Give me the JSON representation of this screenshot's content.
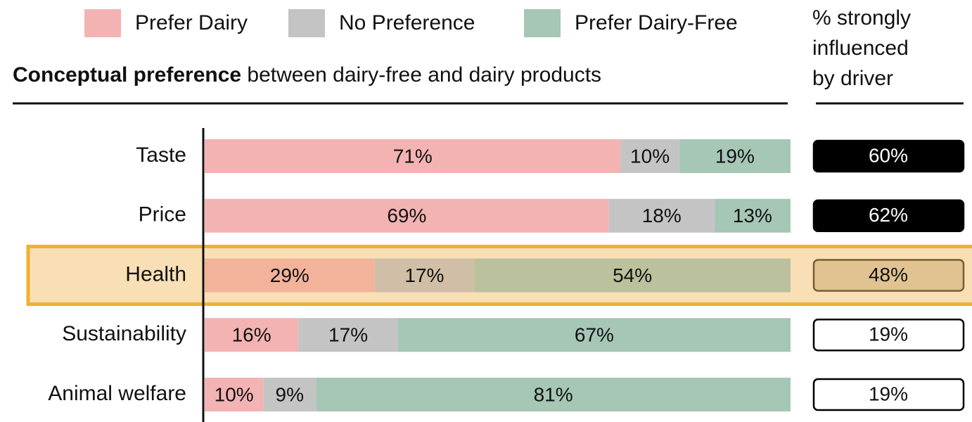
{
  "chart_data": {
    "type": "stacked-bar-horizontal",
    "title": "Conceptual preference",
    "title_suffix": " between dairy-free and dairy products",
    "categories": [
      "Taste",
      "Price",
      "Health",
      "Sustainability",
      "Animal welfare"
    ],
    "xlim": [
      0,
      100
    ],
    "highlight": "Health",
    "series": [
      {
        "name": "Prefer Dairy",
        "color": "#f4b3b3",
        "values": [
          71,
          69,
          29,
          16,
          10
        ],
        "value_labels": [
          "71%",
          "69%",
          "29%",
          "16%",
          "10%"
        ]
      },
      {
        "name": "No Preference",
        "color": "#c4c4c4",
        "values": [
          10,
          18,
          17,
          17,
          9
        ],
        "value_labels": [
          "10%",
          "18%",
          "17%",
          "17%",
          "9%"
        ]
      },
      {
        "name": "Prefer Dairy-Free",
        "color": "#a6c6b6",
        "values": [
          19,
          13,
          54,
          67,
          81
        ],
        "value_labels": [
          "19%",
          "13%",
          "54%",
          "67%",
          "81%"
        ]
      }
    ],
    "influence": {
      "name": "% strongly influenced by driver",
      "values": [
        60,
        62,
        48,
        19,
        19
      ],
      "value_labels": [
        "60%",
        "62%",
        "48%",
        "19%",
        "19%"
      ],
      "colors": [
        "#000000",
        "#000000",
        "#dccaa8",
        "#ffffff",
        "#ffffff"
      ]
    }
  }
}
